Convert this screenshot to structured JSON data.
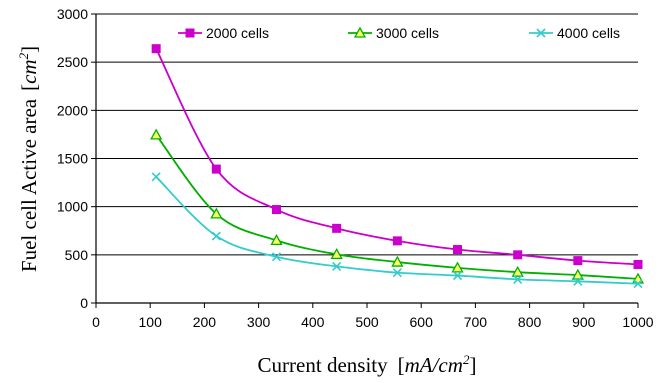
{
  "chart_data": {
    "type": "line",
    "xlabel": "Current density",
    "xunit_base": "mA/cm",
    "xunit_exp": "2",
    "ylabel": "Fuel cell Active area",
    "yunit_base": "cm",
    "yunit_exp": "2",
    "xlim": [
      0,
      1000
    ],
    "ylim": [
      0,
      3000
    ],
    "xticks": [
      0,
      100,
      200,
      300,
      400,
      500,
      600,
      700,
      800,
      900,
      1000
    ],
    "yticks": [
      0,
      500,
      1000,
      1500,
      2000,
      2500,
      3000
    ],
    "grid": "horizontal",
    "legend_position": "top",
    "x": [
      111,
      222,
      333,
      444,
      556,
      667,
      778,
      889,
      1000
    ],
    "series": [
      {
        "name": "2000 cells",
        "marker": "square",
        "color": "#cc00cc",
        "values": [
          2640,
          1390,
          970,
          775,
          645,
          555,
          500,
          440,
          400
        ]
      },
      {
        "name": "3000 cells",
        "marker": "triangle",
        "color": "#00b000",
        "values": [
          1745,
          925,
          650,
          505,
          425,
          365,
          320,
          290,
          250
        ]
      },
      {
        "name": "4000 cells",
        "marker": "x",
        "color": "#33cccc",
        "values": [
          1310,
          695,
          480,
          380,
          315,
          285,
          245,
          225,
          200
        ]
      }
    ]
  }
}
